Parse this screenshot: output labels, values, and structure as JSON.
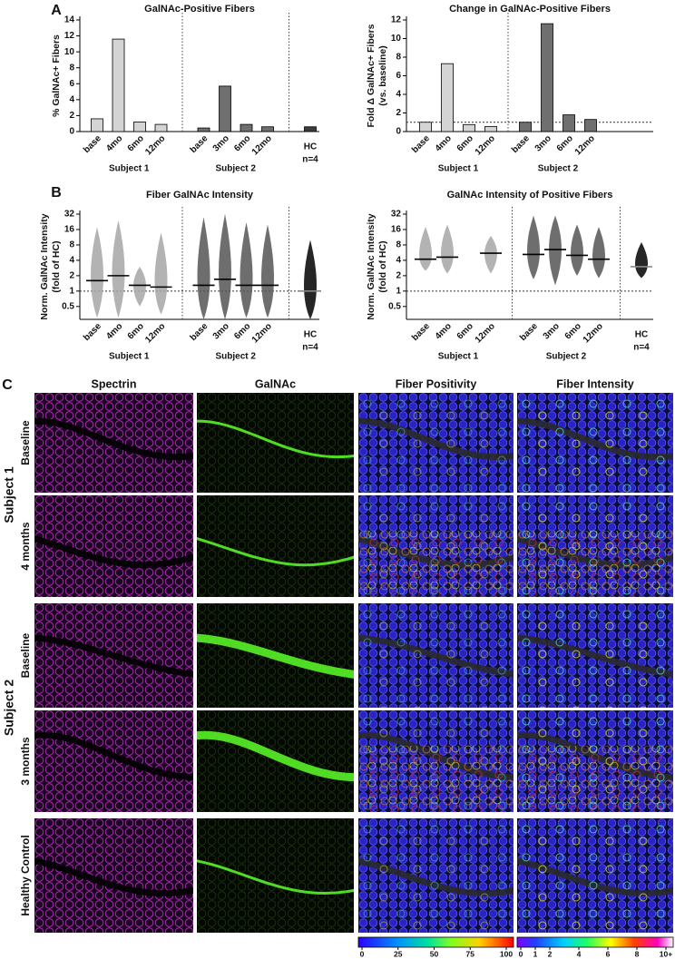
{
  "panel_labels": [
    "A",
    "B",
    "C"
  ],
  "chart_data": [
    {
      "type": "bar",
      "title": "GalNAc-Positive Fibers",
      "ylabel": [
        "% GalNAc+ Fibers"
      ],
      "ylim": [
        0,
        14
      ],
      "yticks": [
        0,
        2,
        4,
        6,
        8,
        10,
        12,
        14
      ],
      "series": [
        {
          "name": "Subject 1",
          "color": "#d4d4d4",
          "categories": [
            "base",
            "4mo",
            "6mo",
            "12mo"
          ],
          "values": [
            1.6,
            11.6,
            1.2,
            0.9
          ]
        },
        {
          "name": "Subject 2",
          "color": "#6f6f6f",
          "categories": [
            "base",
            "3mo",
            "6mo",
            "12mo"
          ],
          "values": [
            0.45,
            5.7,
            0.9,
            0.6
          ]
        },
        {
          "name": "HC",
          "subtitle": "n=4",
          "color": "#3c3c3c",
          "categories": [
            null
          ],
          "values": [
            0.6
          ]
        }
      ]
    },
    {
      "type": "bar",
      "title": "Change in GalNAc-Positive Fibers",
      "ylabel": [
        "Fold Δ GalNAc+ Fibers",
        "(vs. baseline)"
      ],
      "ylim": [
        0,
        12
      ],
      "yticks": [
        0,
        2,
        4,
        6,
        8,
        10,
        12
      ],
      "reference_line": 1,
      "series": [
        {
          "name": "Subject 1",
          "color": "#d4d4d4",
          "categories": [
            "base",
            "4mo",
            "6mo",
            "12mo"
          ],
          "values": [
            1.0,
            7.3,
            0.75,
            0.55
          ]
        },
        {
          "name": "Subject 2",
          "color": "#6f6f6f",
          "categories": [
            "base",
            "3mo",
            "6mo",
            "12mo"
          ],
          "values": [
            1.0,
            11.6,
            1.8,
            1.3
          ]
        }
      ]
    },
    {
      "type": "swarm",
      "title": "Fiber GalNAc Intensity",
      "ylabel": [
        "Norm. GalNAc Intensity",
        "(fold of HC)"
      ],
      "log_scale": true,
      "ylim": [
        0.28,
        32
      ],
      "yticks": [
        0.5,
        1,
        2,
        4,
        8,
        16,
        32
      ],
      "reference_line": 1,
      "series": [
        {
          "name": "Subject 1",
          "color": "#a6a6a6",
          "categories": [
            "base",
            "4mo",
            "6mo",
            "12mo"
          ],
          "medians": [
            1.6,
            2.0,
            1.3,
            1.2
          ],
          "mins": [
            0.3,
            0.3,
            0.5,
            0.35
          ],
          "maxs": [
            18,
            24,
            3,
            14
          ]
        },
        {
          "name": "Subject 2",
          "color": "#555555",
          "categories": [
            "base",
            "3mo",
            "6mo",
            "12mo"
          ],
          "medians": [
            1.3,
            1.7,
            1.3,
            1.3
          ],
          "mins": [
            0.28,
            0.28,
            0.3,
            0.3
          ],
          "maxs": [
            28,
            32,
            22,
            20
          ]
        },
        {
          "name": "HC",
          "subtitle": "n=4",
          "color": "#000000",
          "categories": [
            null
          ],
          "medians": [
            1.0
          ],
          "mins": [
            0.28
          ],
          "maxs": [
            10
          ]
        }
      ]
    },
    {
      "type": "swarm",
      "title": "GalNAc Intensity of Positive Fibers",
      "ylabel": [
        "Norm. GalNAc Intensity",
        "(fold of HC)"
      ],
      "log_scale": true,
      "ylim": [
        0.28,
        32
      ],
      "yticks": [
        0.5,
        1,
        2,
        4,
        8,
        16,
        32
      ],
      "reference_line": 1,
      "series": [
        {
          "name": "Subject 1",
          "color": "#a6a6a6",
          "categories": [
            "base",
            "4mo",
            "6mo",
            "12mo"
          ],
          "medians": [
            4.2,
            4.6,
            null,
            5.5
          ],
          "mins": [
            2.5,
            2.2,
            null,
            2.2
          ],
          "maxs": [
            18,
            20,
            null,
            12
          ]
        },
        {
          "name": "Subject 2",
          "color": "#555555",
          "categories": [
            "base",
            "3mo",
            "6mo",
            "12mo"
          ],
          "medians": [
            5.2,
            6.5,
            5.0,
            4.2
          ],
          "mins": [
            1.7,
            1.3,
            2.0,
            1.8
          ],
          "maxs": [
            30,
            30,
            20,
            18
          ]
        },
        {
          "name": "HC",
          "subtitle": "n=4",
          "color": "#000000",
          "categories": [
            null
          ],
          "medians": [
            3.0
          ],
          "mins": [
            1.8
          ],
          "maxs": [
            9
          ]
        }
      ]
    }
  ],
  "image_grid": {
    "columns": [
      "Spectrin",
      "GalNAc",
      "Fiber Positivity",
      "Fiber Intensity"
    ],
    "row_groups": [
      {
        "name": "Subject 1",
        "rows": [
          "Baseline",
          "4 months"
        ]
      },
      {
        "name": "Subject 2",
        "rows": [
          "Baseline",
          "3 months"
        ]
      },
      {
        "rows": [
          "Healthy Control"
        ]
      }
    ],
    "colorbars": [
      {
        "lim": [
          0,
          100
        ],
        "ticks": [
          0,
          25,
          50,
          75,
          100
        ]
      },
      {
        "lim": [
          0,
          10
        ],
        "ticks": [
          0,
          1,
          2,
          4,
          6,
          8,
          {
            "value": 10,
            "label": "10+"
          }
        ]
      }
    ]
  }
}
